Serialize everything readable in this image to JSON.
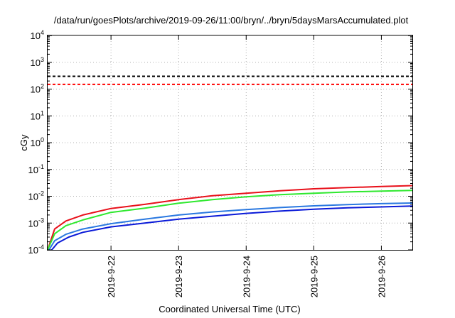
{
  "chart_data": {
    "type": "line",
    "title": "/data/run/goesPlots/archive/2019-09-26/11:00/bryn/../bryn/5daysMarsAccumulated.plot",
    "xlabel": "Coordinated Universal Time (UTC)",
    "ylabel": "cGy",
    "x_scale": "time",
    "y_scale": "log",
    "xlim": [
      "2019-09-21 01:30",
      "2019-09-26 11:00"
    ],
    "ylim": [
      0.0001,
      10000
    ],
    "x_ticks": [
      "2019-9-22",
      "2019-9-23",
      "2019-9-24",
      "2019-9-25",
      "2019-9-26"
    ],
    "y_ticks": [
      {
        "value": 0.0001,
        "base": "10",
        "exp": "-4"
      },
      {
        "value": 0.001,
        "base": "10",
        "exp": "-3"
      },
      {
        "value": 0.01,
        "base": "10",
        "exp": "-2"
      },
      {
        "value": 0.1,
        "base": "10",
        "exp": "-1"
      },
      {
        "value": 1,
        "base": "10",
        "exp": "0"
      },
      {
        "value": 10,
        "base": "10",
        "exp": "1"
      },
      {
        "value": 100,
        "base": "10",
        "exp": "2"
      },
      {
        "value": 1000,
        "base": "10",
        "exp": "3"
      },
      {
        "value": 10000,
        "base": "10",
        "exp": "4"
      }
    ],
    "grid": true,
    "reference_lines": [
      {
        "y": 300,
        "color": "#000000",
        "style": "dashed"
      },
      {
        "y": 150,
        "color": "#ff0000",
        "style": "dashed"
      }
    ],
    "series": [
      {
        "color": "#e8101a",
        "x": [
          "2019-09-21 01:30",
          "2019-09-21 04:00",
          "2019-09-21 08:00",
          "2019-09-21 14:00",
          "2019-09-22 00:00",
          "2019-09-22 12:00",
          "2019-09-23 00:00",
          "2019-09-23 12:00",
          "2019-09-24 00:00",
          "2019-09-24 12:00",
          "2019-09-25 00:00",
          "2019-09-25 12:00",
          "2019-09-26 00:00",
          "2019-09-26 11:00"
        ],
        "values": [
          0.0001,
          0.0006,
          0.0012,
          0.002,
          0.0035,
          0.005,
          0.0075,
          0.0105,
          0.013,
          0.016,
          0.019,
          0.021,
          0.023,
          0.025
        ]
      },
      {
        "color": "#2ee82e",
        "x": [
          "2019-09-21 01:30",
          "2019-09-21 04:00",
          "2019-09-21 08:00",
          "2019-09-21 14:00",
          "2019-09-22 00:00",
          "2019-09-22 12:00",
          "2019-09-23 00:00",
          "2019-09-23 12:00",
          "2019-09-24 00:00",
          "2019-09-24 12:00",
          "2019-09-25 00:00",
          "2019-09-25 12:00",
          "2019-09-26 00:00",
          "2019-09-26 11:00"
        ],
        "values": [
          0.0001,
          0.0004,
          0.0008,
          0.0013,
          0.0025,
          0.0036,
          0.0055,
          0.0075,
          0.0095,
          0.0115,
          0.013,
          0.0145,
          0.0155,
          0.0165
        ]
      },
      {
        "color": "#2a78e0",
        "x": [
          "2019-09-21 02:00",
          "2019-09-21 04:00",
          "2019-09-21 08:00",
          "2019-09-21 14:00",
          "2019-09-22 00:00",
          "2019-09-22 12:00",
          "2019-09-23 00:00",
          "2019-09-23 12:00",
          "2019-09-24 00:00",
          "2019-09-24 12:00",
          "2019-09-25 00:00",
          "2019-09-25 12:00",
          "2019-09-26 00:00",
          "2019-09-26 11:00"
        ],
        "values": [
          0.0001,
          0.00022,
          0.00038,
          0.0006,
          0.00095,
          0.0014,
          0.002,
          0.0026,
          0.0032,
          0.0038,
          0.0044,
          0.0049,
          0.0053,
          0.0056
        ]
      },
      {
        "color": "#0a1ad8",
        "x": [
          "2019-09-21 03:00",
          "2019-09-21 05:00",
          "2019-09-21 09:00",
          "2019-09-21 14:00",
          "2019-09-22 00:00",
          "2019-09-22 12:00",
          "2019-09-23 00:00",
          "2019-09-23 12:00",
          "2019-09-24 00:00",
          "2019-09-24 12:00",
          "2019-09-25 00:00",
          "2019-09-25 12:00",
          "2019-09-26 00:00",
          "2019-09-26 11:00"
        ],
        "values": [
          0.0001,
          0.00018,
          0.0003,
          0.00045,
          0.00072,
          0.001,
          0.0014,
          0.0018,
          0.0023,
          0.0028,
          0.0033,
          0.0037,
          0.004,
          0.0043
        ]
      }
    ]
  },
  "colors": {
    "grid": "#b0b0b0",
    "axis": "#000000",
    "background": "#ffffff"
  }
}
